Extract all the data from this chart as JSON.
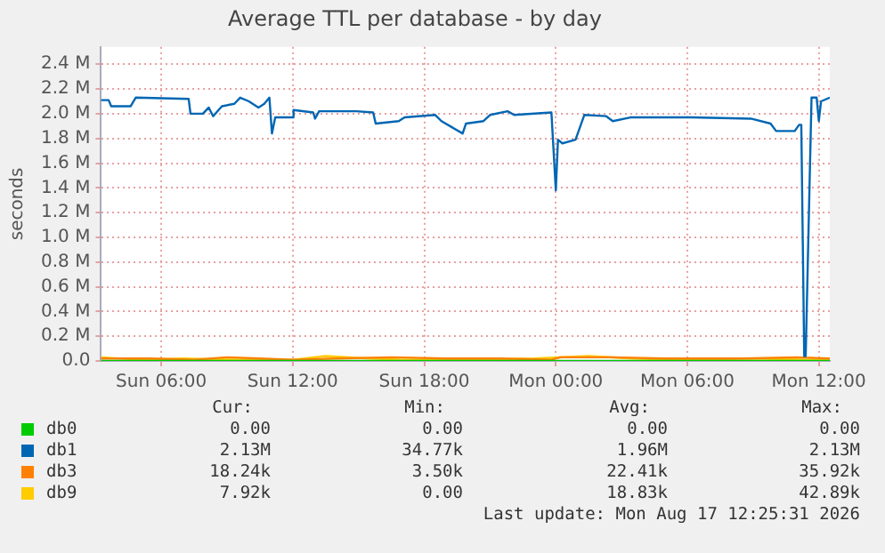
{
  "chart_data": {
    "type": "line",
    "title": "Average TTL per database - by day",
    "ylabel": "seconds",
    "xlim": [
      "2026-08-16T03:15",
      "2026-08-17T12:30"
    ],
    "xticks": [
      {
        "value": "2026-08-16T06:00",
        "label": "Sun 06:00"
      },
      {
        "value": "2026-08-16T12:00",
        "label": "Sun 12:00"
      },
      {
        "value": "2026-08-16T18:00",
        "label": "Sun 18:00"
      },
      {
        "value": "2026-08-17T00:00",
        "label": "Mon 00:00"
      },
      {
        "value": "2026-08-17T06:00",
        "label": "Mon 06:00"
      },
      {
        "value": "2026-08-17T12:00",
        "label": "Mon 12:00"
      }
    ],
    "ylim": [
      0,
      2.54
    ],
    "yticks": [
      {
        "value": 0,
        "label": "0.0"
      },
      {
        "value": 0.2,
        "label": "0.2 M"
      },
      {
        "value": 0.4,
        "label": "0.4 M"
      },
      {
        "value": 0.6,
        "label": "0.6 M"
      },
      {
        "value": 0.8,
        "label": "0.8 M"
      },
      {
        "value": 1.0,
        "label": "1.0 M"
      },
      {
        "value": 1.2,
        "label": "1.2 M"
      },
      {
        "value": 1.4,
        "label": "1.4 M"
      },
      {
        "value": 1.6,
        "label": "1.6 M"
      },
      {
        "value": 1.8,
        "label": "1.8 M"
      },
      {
        "value": 2.0,
        "label": "2.0 M"
      },
      {
        "value": 2.2,
        "label": "2.2 M"
      },
      {
        "value": 2.4,
        "label": "2.4 M"
      }
    ],
    "grid": true,
    "marker": "none",
    "legend": "bottom",
    "series": [
      {
        "name": "db0",
        "color": "#00cc00",
        "x": [
          "2026-08-16T03:15",
          "2026-08-17T12:30"
        ],
        "values": [
          0,
          0
        ]
      },
      {
        "name": "db1",
        "color": "#0066b3",
        "x": [
          "2026-08-16T03:15",
          "2026-08-16T03:36",
          "2026-08-16T03:43",
          "2026-08-16T04:36",
          "2026-08-16T04:50",
          "2026-08-16T07:15",
          "2026-08-16T07:20",
          "2026-08-16T07:54",
          "2026-08-16T08:10",
          "2026-08-16T08:22",
          "2026-08-16T08:46",
          "2026-08-16T09:20",
          "2026-08-16T09:36",
          "2026-08-16T10:00",
          "2026-08-16T10:26",
          "2026-08-16T10:42",
          "2026-08-16T10:56",
          "2026-08-16T11:03",
          "2026-08-16T11:12",
          "2026-08-16T11:58",
          "2026-08-16T12:02",
          "2026-08-16T12:56",
          "2026-08-16T13:01",
          "2026-08-16T13:12",
          "2026-08-16T14:54",
          "2026-08-16T15:40",
          "2026-08-16T15:47",
          "2026-08-16T16:50",
          "2026-08-16T17:06",
          "2026-08-16T18:30",
          "2026-08-16T18:47",
          "2026-08-16T19:45",
          "2026-08-16T19:54",
          "2026-08-16T20:42",
          "2026-08-16T21:00",
          "2026-08-16T21:48",
          "2026-08-16T22:06",
          "2026-08-16T23:48",
          "2026-08-17T00:00",
          "2026-08-17T00:06",
          "2026-08-17T00:18",
          "2026-08-17T00:54",
          "2026-08-17T01:18",
          "2026-08-17T02:18",
          "2026-08-17T02:36",
          "2026-08-17T03:24",
          "2026-08-17T06:12",
          "2026-08-17T08:54",
          "2026-08-17T09:48",
          "2026-08-17T10:03",
          "2026-08-17T10:54",
          "2026-08-17T11:06",
          "2026-08-17T11:12",
          "2026-08-17T11:20",
          "2026-08-17T11:24",
          "2026-08-17T11:40",
          "2026-08-17T11:54",
          "2026-08-17T12:00",
          "2026-08-17T12:06",
          "2026-08-17T12:30"
        ],
        "values": [
          2.11,
          2.11,
          2.06,
          2.06,
          2.13,
          2.12,
          2.0,
          2.0,
          2.05,
          1.98,
          2.06,
          2.08,
          2.13,
          2.1,
          2.05,
          2.08,
          2.13,
          1.84,
          1.97,
          1.97,
          2.03,
          2.01,
          1.96,
          2.02,
          2.02,
          2.01,
          1.92,
          1.94,
          1.97,
          1.99,
          1.94,
          1.84,
          1.92,
          1.94,
          1.99,
          2.02,
          1.99,
          2.01,
          1.38,
          1.79,
          1.76,
          1.79,
          1.99,
          1.98,
          1.94,
          1.97,
          1.97,
          1.96,
          1.92,
          1.86,
          1.86,
          1.91,
          1.91,
          0.04,
          0.04,
          2.13,
          2.13,
          1.94,
          2.1,
          2.13
        ]
      },
      {
        "name": "db3",
        "color": "#ff8000",
        "x": [
          "2026-08-16T03:15",
          "2026-08-16T05:30",
          "2026-08-16T07:30",
          "2026-08-16T09:00",
          "2026-08-16T10:30",
          "2026-08-16T12:00",
          "2026-08-16T14:00",
          "2026-08-16T16:30",
          "2026-08-16T19:00",
          "2026-08-16T21:30",
          "2026-08-16T23:48",
          "2026-08-17T00:12",
          "2026-08-17T02:30",
          "2026-08-17T05:00",
          "2026-08-17T08:30",
          "2026-08-17T11:00",
          "2026-08-17T12:30"
        ],
        "values": [
          0.02,
          0.02,
          0.01,
          0.03,
          0.02,
          0.01,
          0.02,
          0.03,
          0.02,
          0.02,
          0.01,
          0.03,
          0.03,
          0.02,
          0.02,
          0.03,
          0.02
        ]
      },
      {
        "name": "db9",
        "color": "#ffcc00",
        "x": [
          "2026-08-16T03:15",
          "2026-08-16T05:00",
          "2026-08-16T07:00",
          "2026-08-16T09:30",
          "2026-08-16T12:00",
          "2026-08-16T13:30",
          "2026-08-16T15:30",
          "2026-08-16T17:00",
          "2026-08-16T20:00",
          "2026-08-16T23:00",
          "2026-08-17T01:30",
          "2026-08-17T03:30",
          "2026-08-17T06:00",
          "2026-08-17T09:00",
          "2026-08-17T11:30",
          "2026-08-17T12:30"
        ],
        "values": [
          0.03,
          0.01,
          0.02,
          0.01,
          0.01,
          0.04,
          0.02,
          0.01,
          0.01,
          0.02,
          0.04,
          0.02,
          0.01,
          0.02,
          0.01,
          0.01
        ]
      }
    ],
    "annotations": [
      "Cur:",
      "Min:",
      "Avg:",
      "Max:",
      "0.00",
      "0.00",
      "0.00",
      "0.00",
      "2.13M",
      "34.77k",
      "1.96M",
      "2.13M",
      "18.24k",
      "3.50k",
      "22.41k",
      "35.92k",
      "7.92k",
      "0.00",
      "18.83k",
      "42.89k",
      "Last update: Mon Aug 17 12:25:31 2026"
    ]
  }
}
